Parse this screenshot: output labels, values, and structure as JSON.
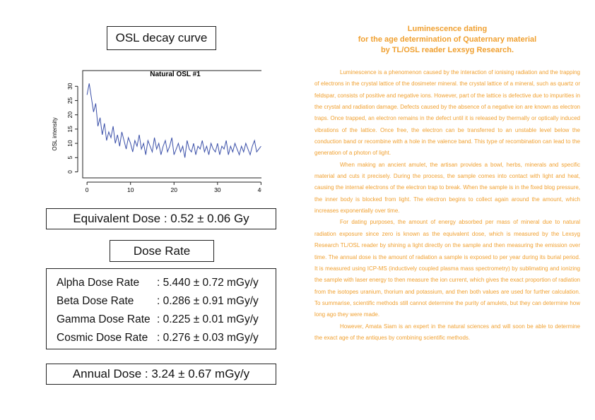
{
  "curve_heading": "OSL decay curve",
  "chart_data": {
    "type": "line",
    "title": "Natural OSL #1",
    "y_label": "OSL intensity",
    "color": "#3a4fa8",
    "x": [
      0,
      0.5,
      1,
      1.5,
      2,
      2.5,
      3,
      3.5,
      4,
      4.5,
      5,
      5.5,
      6,
      6.5,
      7,
      7.5,
      8,
      8.5,
      9,
      9.5,
      10,
      10.5,
      11,
      11.5,
      12,
      12.5,
      13,
      13.5,
      14,
      14.5,
      15,
      15.5,
      16,
      16.5,
      17,
      17.5,
      18,
      18.5,
      19,
      19.5,
      20,
      20.5,
      21,
      21.5,
      22,
      22.5,
      23,
      23.5,
      24,
      24.5,
      25,
      25.5,
      26,
      26.5,
      27,
      27.5,
      28,
      28.5,
      29,
      29.5,
      30,
      30.5,
      31,
      31.5,
      32,
      32.5,
      33,
      33.5,
      34,
      34.5,
      35,
      35.5,
      36,
      36.5,
      37,
      37.5,
      38,
      38.5,
      39,
      39.5,
      40
    ],
    "values": [
      27,
      31,
      26,
      21,
      24,
      16,
      19,
      13,
      17,
      11,
      14,
      12,
      16,
      10,
      13,
      9,
      14,
      11,
      8,
      12,
      10,
      7,
      11,
      9,
      13,
      8,
      10,
      6,
      11,
      9,
      7,
      12,
      8,
      10,
      6,
      9,
      11,
      7,
      9,
      12,
      6,
      8,
      10,
      7,
      9,
      5,
      11,
      8,
      7,
      10,
      6,
      9,
      8,
      11,
      7,
      9,
      6,
      10,
      8,
      7,
      10,
      6,
      9,
      8,
      11,
      6,
      9,
      7,
      10,
      8,
      6,
      9,
      7,
      10,
      8,
      6,
      9,
      11,
      7,
      8,
      9
    ],
    "xlim": [
      -1,
      41.4
    ],
    "ylim": [
      -2.1,
      35.5
    ],
    "xticks": [
      0,
      10,
      20,
      30,
      40
    ],
    "yticks": [
      0,
      5,
      10,
      15,
      20,
      25,
      30
    ]
  },
  "equivalent_dose": "Equivalent Dose : 0.52 ± 0.06 Gy",
  "dose_rate_heading": "Dose Rate",
  "dose_rates": [
    {
      "label": "Alpha Dose Rate",
      "value": ": 5.440 ± 0.72 mGy/y"
    },
    {
      "label": "Beta Dose Rate",
      "value": ": 0.286 ± 0.91 mGy/y"
    },
    {
      "label": "Gamma Dose Rate",
      "value": ": 0.225 ± 0.01 mGy/y"
    },
    {
      "label": "Cosmic Dose Rate",
      "value": ": 0.276 ± 0.03 mGy/y"
    }
  ],
  "annual_dose": "Annual Dose : 3.24 ± 0.67 mGy/y",
  "article": {
    "title_lines": [
      "Luminescence dating",
      "for the age determination of Quaternary material",
      "by TL/OSL reader Lexsyg Research."
    ],
    "paragraphs": [
      "Luminescence is a phenomenon caused by the interaction of ionising radiation and the trapping of electrons in the crystal lattice of the dosimeter mineral. the crystal lattice of a mineral, such as quartz or feldspar, consists of positive and negative ions. However, part of the lattice is defective due to impurities in the crystal and radiation damage. Defects caused by the absence of a negative ion are known as electron traps. Once trapped, an electron remains in the defect until it is released by thermally or optically induced vibrations of the lattice. Once free, the electron can be transferred to an unstable level below the conduction band or recombine with a hole in the valence band. This type of recombination can lead to the generation of a photon of light.",
      "When making an ancient amulet, the artisan provides a bowl, herbs, minerals and specific material and cuts it precisely. During the process, the sample comes into contact with light and heat, causing the internal electrons of the electron trap to break. When the sample is in the fixed blog pressure, the inner body is blocked from light. The electron begins to collect again around the amount, which increases exponentially over time.",
      "For dating purposes, the amount of energy absorbed per mass of mineral due to natural radiation exposure since zero is known as the equivalent dose, which is measured by the Lexsyg Research TL/OSL reader by shining a light directly on the sample and then measuring the emission over time. The annual dose is the amount of radiation a sample is exposed to per year during its burial period. It is measured using ICP-MS (inductively coupled plasma mass spectrometry) by sublimating and ionizing the sample with laser energy to then measure the ion current, which gives the exact proportion of radiation from the isotopes uranium, thorium and potassium, and then both values are used for further calculation. To summarise, scientific methods still cannot determine the purity of amulets, but they can determine how long ago they were made.",
      "However, Amata Siam is an expert in the natural sciences and will soon be able to determine the exact age of the antiques by combining scientific methods."
    ]
  }
}
